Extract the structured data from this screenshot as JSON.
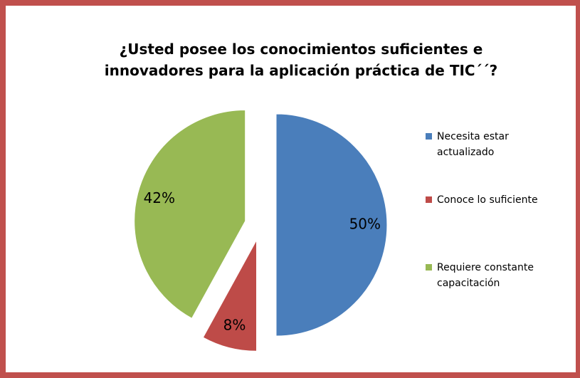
{
  "chart_data": {
    "type": "pie",
    "title": "¿Usted posee los conocimientos suficientes e innovadores para la aplicación práctica  de TIC´´?",
    "categories": [
      "Necesita estar actualizado",
      "Conoce lo suficiente",
      "Requiere constante capacitación"
    ],
    "values": [
      50,
      8,
      42
    ],
    "value_labels": [
      "50%",
      "8%",
      "42%"
    ],
    "colors": [
      "#4a7ebb",
      "#be4b48",
      "#98b954"
    ],
    "legend": "right"
  }
}
